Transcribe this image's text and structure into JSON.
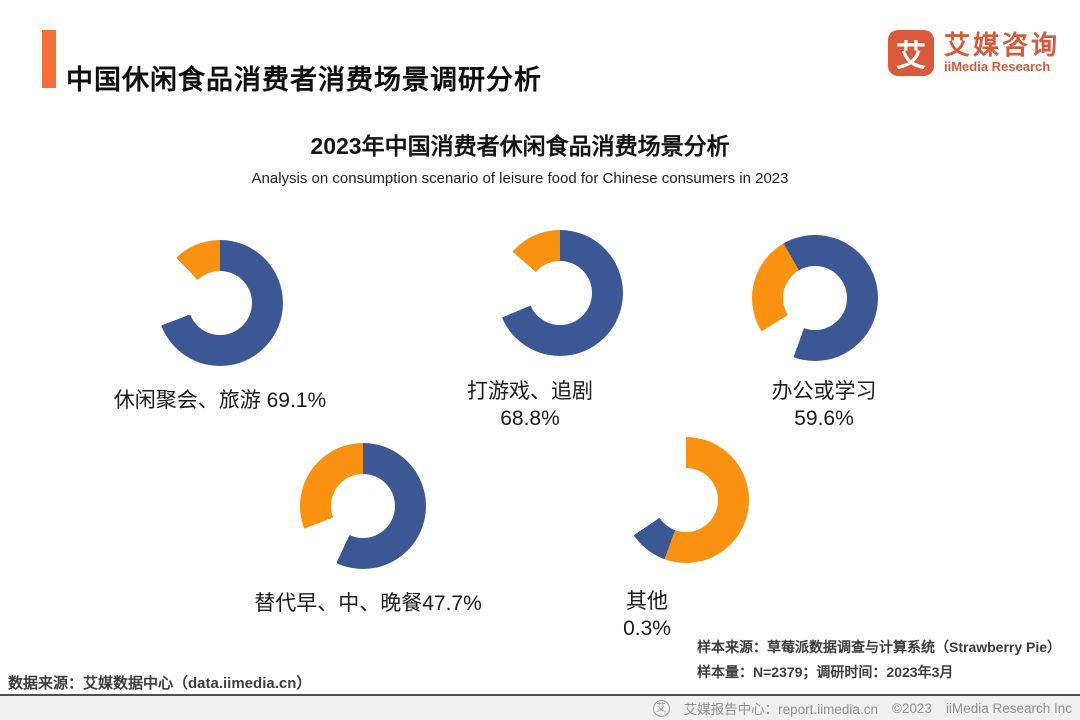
{
  "palette": {
    "blue": "#3B5794",
    "orange": "#FB9110",
    "brand": "#D95A3A",
    "accent_bar": "#F86E38",
    "gap": "#FFFFFF"
  },
  "header": {
    "title": "中国休闲食品消费者消费场景调研分析"
  },
  "logo": {
    "glyph": "艾",
    "name_cn": "艾媒咨询",
    "name_en": "iiMedia Research"
  },
  "chart": {
    "title": "2023年中国消费者休闲食品消费场景分析",
    "subtitle": "Analysis on consumption scenario of leisure food for Chinese consumers in 2023"
  },
  "chart_data": {
    "type": "pie",
    "variant": "donut-small-multiples",
    "title": "2023年中国消费者休闲食品消费场景分析",
    "subtitle": "Analysis on consumption scenario of leisure food for Chinese consumers in 2023",
    "unit": "percent",
    "categories": [
      "休闲聚会、旅游",
      "打游戏、追剧",
      "办公或学习",
      "替代早、中、晚餐",
      "其他"
    ],
    "values": [
      69.1,
      68.8,
      59.6,
      47.7,
      0.3
    ],
    "colors": {
      "series": "#3B5794",
      "accent": "#FB9110"
    },
    "legend": "none"
  },
  "donuts": [
    {
      "lines": [
        "休闲聚会、旅游  69.1%"
      ],
      "value": 69.1,
      "from": 0,
      "segments": [
        [
          "blue",
          0,
          249
        ],
        [
          "gap",
          249,
          316
        ],
        [
          "orange",
          316,
          360
        ]
      ]
    },
    {
      "lines": [
        "打游戏、追剧",
        "68.8%"
      ],
      "value": 68.8,
      "from": 0,
      "segments": [
        [
          "blue",
          0,
          247
        ],
        [
          "gap",
          247,
          311
        ],
        [
          "orange",
          311,
          360
        ]
      ]
    },
    {
      "lines": [
        "办公或学习",
        "59.6%"
      ],
      "value": 59.6,
      "from": -30,
      "segments": [
        [
          "blue",
          0,
          230
        ],
        [
          "gap",
          230,
          268
        ],
        [
          "orange",
          268,
          360
        ]
      ]
    },
    {
      "lines": [
        "替代早、中、晚餐47.7%"
      ],
      "value": 47.7,
      "from": 0,
      "segments": [
        [
          "blue",
          0,
          205
        ],
        [
          "gap",
          205,
          249
        ],
        [
          "orange",
          249,
          360
        ]
      ]
    },
    {
      "lines": [
        "其他",
        "0.3%"
      ],
      "value": 0.3,
      "from": 0,
      "segments": [
        [
          "orange",
          0,
          200
        ],
        [
          "blue",
          200,
          236
        ],
        [
          "gap",
          236,
          360
        ]
      ]
    }
  ],
  "sources": {
    "data_source": "数据来源：艾媒数据中心（data.iimedia.cn）",
    "sample_source": "样本来源：草莓派数据调查与计算系统（Strawberry Pie）",
    "sample_size": "样本量：N=2379；调研时间：2023年3月"
  },
  "footer": {
    "icon_glyph": "艾",
    "report_center": "艾媒报告中心：report.iimedia.cn",
    "copyright": "©2023",
    "company": "iiMedia Research Inc"
  }
}
